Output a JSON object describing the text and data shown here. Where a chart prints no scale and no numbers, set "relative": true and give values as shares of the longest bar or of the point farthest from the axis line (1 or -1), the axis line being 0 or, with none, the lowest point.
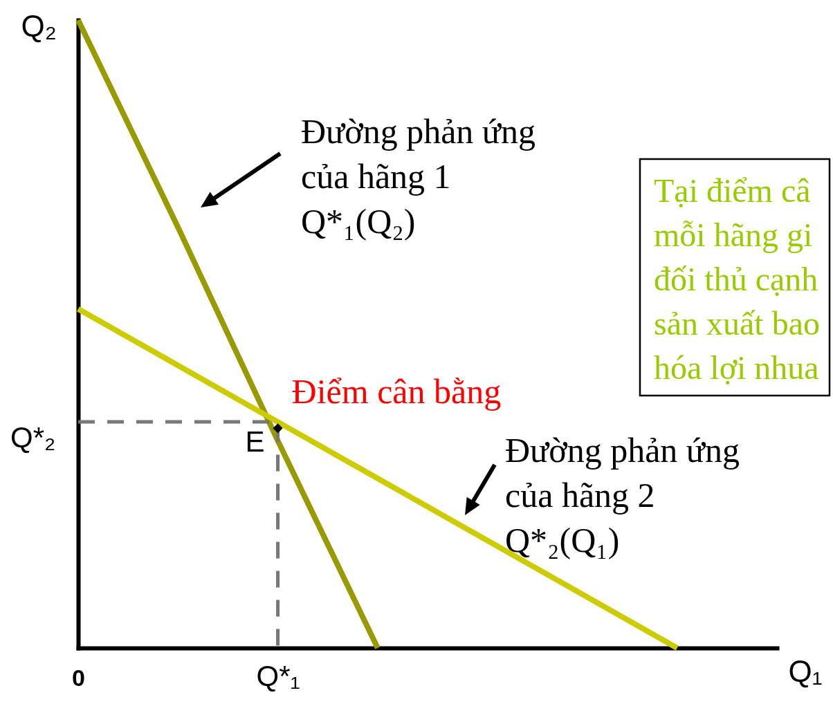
{
  "chart_data": {
    "type": "line",
    "relative": true,
    "xlabel": "Q₁",
    "ylabel": "Q₂",
    "categories": [
      "0",
      null,
      "Q*₁",
      null,
      null,
      null,
      null,
      null
    ],
    "series": [
      {
        "color": "#999900",
        "values": [
          1,
          0.67,
          0.33,
          0,
          null,
          null,
          null,
          null
        ]
      },
      {
        "color": "#cccc00",
        "values": [
          0.54,
          0.45,
          0.36,
          0.27,
          0.18,
          0.09,
          0,
          null
        ]
      },
      {
        "color": "#777777",
        "line_style": "dashed",
        "x": [
          "0",
          "Q*₁",
          "Q*₁"
        ],
        "values": [
          0.36,
          0.36,
          0
        ]
      },
      {
        "type": "scatter",
        "color": "#000000",
        "marker": "diamond",
        "x": [
          "Q*₁"
        ],
        "values": [
          0.35
        ]
      }
    ],
    "annotations": [
      "Đường phản ứng\ncủa hãng 1\nQ*₁(Q₂)",
      "Đường phản ứng\ncủa hãng 2\nQ*₂(Q₁)",
      {
        "text": "Điểm cân bằng",
        "x": "Q*₁",
        "y": 0.36
      },
      {
        "text": "E",
        "x": "Q*₁",
        "y": 0.36
      },
      {
        "text": "Q*₂",
        "x": "0",
        "y": 0.36
      },
      "Tại điểm câ\nmỗi hãng gi\nđối thủ cạnh\nsản xuất bao\nhóa lợi nhua"
    ]
  }
}
